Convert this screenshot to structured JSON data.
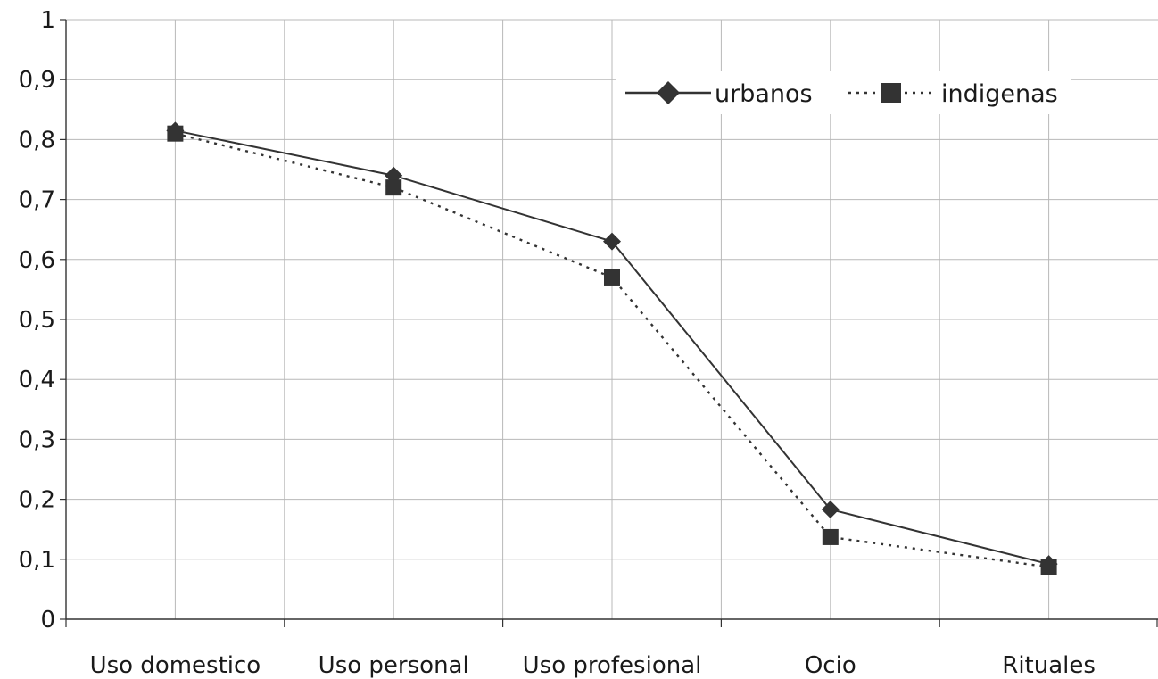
{
  "chart_data": {
    "type": "line",
    "categories": [
      "Uso domestico",
      "Uso personal",
      "Uso profesional",
      "Ocio",
      "Rituales"
    ],
    "ylim": [
      0,
      1
    ],
    "yticks": [
      "0",
      "0,1",
      "0,2",
      "0,3",
      "0,4",
      "0,5",
      "0,6",
      "0,7",
      "0,8",
      "0,9",
      "1"
    ],
    "grid": true,
    "legend_position": "top-right",
    "series": [
      {
        "name": "urbanos",
        "values": [
          0.815,
          0.74,
          0.63,
          0.183,
          0.092
        ],
        "marker": "diamond",
        "line": "solid",
        "color": "#333333"
      },
      {
        "name": "indigenas",
        "values": [
          0.81,
          0.72,
          0.57,
          0.137,
          0.087
        ],
        "marker": "square",
        "line": "dotted",
        "color": "#333333"
      }
    ]
  }
}
